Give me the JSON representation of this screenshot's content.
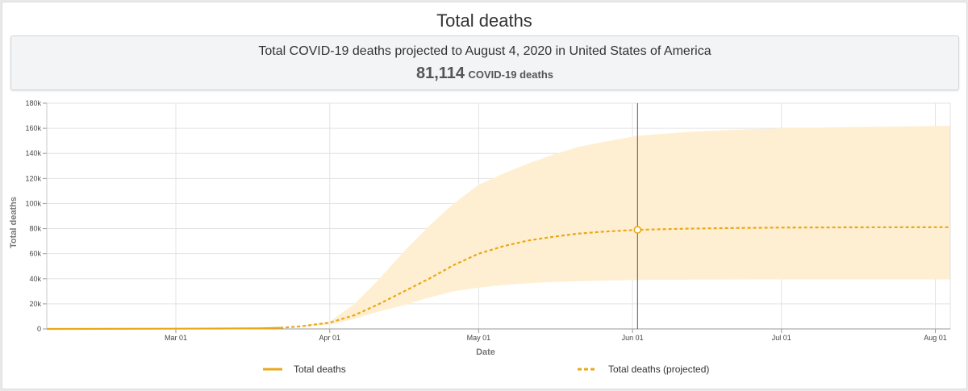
{
  "header": {
    "title": "Total deaths",
    "summary_text": "Total COVID-19 deaths projected to August 4, 2020 in United States of America",
    "summary_value": "81,114",
    "summary_unit": "COVID-19 deaths"
  },
  "colors": {
    "line": "#e9a817",
    "band": "#ffefd2",
    "cursor": "#555555",
    "grid": "#e3e3e3"
  },
  "chart_data": {
    "type": "line",
    "title": "",
    "xlabel": "Date",
    "ylabel": "Total deaths",
    "x_type": "date",
    "xlim": [
      "2020-02-04",
      "2020-08-04"
    ],
    "ylim": [
      0,
      180000
    ],
    "y_ticks": [
      0,
      20000,
      40000,
      60000,
      80000,
      100000,
      120000,
      140000,
      160000,
      180000
    ],
    "y_tick_labels": [
      "0",
      "20k",
      "40k",
      "60k",
      "80k",
      "100k",
      "120k",
      "140k",
      "160k",
      "180k"
    ],
    "x_ticks": [
      "2020-03-01",
      "2020-04-01",
      "2020-05-01",
      "2020-06-01",
      "2020-07-01",
      "2020-08-01"
    ],
    "x_tick_labels": [
      "Mar 01",
      "Apr 01",
      "May 01",
      "Jun 01",
      "Jul 01",
      "Aug 01"
    ],
    "grid": true,
    "legend_position": "bottom",
    "cursor_date": "2020-06-02",
    "series": [
      {
        "name": "Total deaths",
        "style": "solid",
        "points": [
          [
            "2020-02-04",
            0
          ],
          [
            "2020-03-01",
            200
          ],
          [
            "2020-03-10",
            300
          ],
          [
            "2020-03-18",
            500
          ],
          [
            "2020-03-22",
            900
          ]
        ]
      },
      {
        "name": "Total deaths (projected)",
        "style": "dashed",
        "points": [
          [
            "2020-03-22",
            900
          ],
          [
            "2020-03-26",
            2000
          ],
          [
            "2020-04-01",
            5000
          ],
          [
            "2020-04-06",
            11000
          ],
          [
            "2020-04-11",
            20000
          ],
          [
            "2020-04-16",
            30000
          ],
          [
            "2020-04-21",
            40000
          ],
          [
            "2020-04-26",
            51000
          ],
          [
            "2020-05-01",
            60000
          ],
          [
            "2020-05-06",
            66000
          ],
          [
            "2020-05-11",
            70500
          ],
          [
            "2020-05-16",
            73500
          ],
          [
            "2020-05-21",
            76000
          ],
          [
            "2020-05-26",
            77500
          ],
          [
            "2020-06-02",
            79000
          ],
          [
            "2020-06-12",
            80000
          ],
          [
            "2020-06-22",
            80500
          ],
          [
            "2020-07-01",
            80800
          ],
          [
            "2020-07-15",
            81000
          ],
          [
            "2020-08-04",
            81114
          ]
        ]
      }
    ],
    "uncertainty_band": [
      [
        "2020-03-25",
        1500,
        1500
      ],
      [
        "2020-04-01",
        3500,
        6000
      ],
      [
        "2020-04-06",
        8000,
        20000
      ],
      [
        "2020-04-11",
        14000,
        40000
      ],
      [
        "2020-04-16",
        19000,
        62000
      ],
      [
        "2020-04-21",
        25000,
        82000
      ],
      [
        "2020-04-26",
        30000,
        100000
      ],
      [
        "2020-05-01",
        33000,
        115000
      ],
      [
        "2020-05-06",
        35000,
        124000
      ],
      [
        "2020-05-11",
        36500,
        132000
      ],
      [
        "2020-05-16",
        37500,
        139000
      ],
      [
        "2020-05-21",
        38000,
        145000
      ],
      [
        "2020-05-26",
        38500,
        149000
      ],
      [
        "2020-06-02",
        39000,
        154000
      ],
      [
        "2020-06-12",
        39300,
        157000
      ],
      [
        "2020-06-22",
        39500,
        159000
      ],
      [
        "2020-07-01",
        39600,
        160000
      ],
      [
        "2020-07-15",
        39700,
        161000
      ],
      [
        "2020-08-04",
        39800,
        162000
      ]
    ]
  }
}
